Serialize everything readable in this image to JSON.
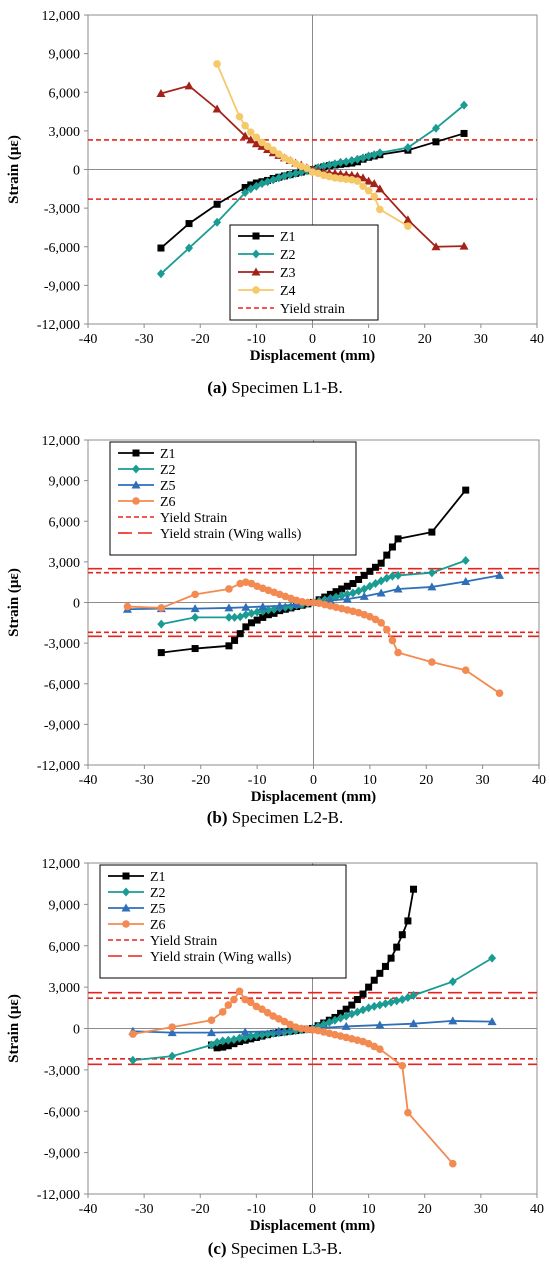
{
  "chart_data": [
    {
      "type": "line",
      "caption_letter": "(a)",
      "caption_text": " Specimen L1-B.",
      "xlabel": "Displacement (mm)",
      "ylabel": "Strain (με)",
      "xlim": [
        -40,
        40
      ],
      "ylim": [
        -12000,
        12000
      ],
      "xticks": [
        "-40",
        "-30",
        "-20",
        "-10",
        "0",
        "10",
        "20",
        "30",
        "40"
      ],
      "yticks": [
        "-12,000",
        "-9,000",
        "-6,000",
        "-3,000",
        "0",
        "3,000",
        "6,000",
        "9,000",
        "12,000"
      ],
      "legend_position": "bottom-center",
      "series": [
        {
          "name": "Z1",
          "color": "#000000",
          "marker": "square",
          "x": [
            -27,
            -22,
            -17,
            -12,
            -11,
            -10,
            -9,
            -8,
            -7,
            -6,
            -5,
            -4,
            -3,
            -2,
            -1,
            0,
            1,
            2,
            3,
            4,
            5,
            6,
            7,
            8,
            9,
            10,
            11,
            12,
            17,
            22,
            27
          ],
          "y": [
            -6100,
            -4200,
            -2700,
            -1400,
            -1200,
            -1050,
            -950,
            -850,
            -700,
            -600,
            -500,
            -400,
            -300,
            -200,
            -100,
            0,
            100,
            200,
            300,
            350,
            400,
            450,
            500,
            600,
            800,
            950,
            1050,
            1150,
            1500,
            2150,
            2800
          ]
        },
        {
          "name": "Z2",
          "color": "#1a9c93",
          "marker": "diamond",
          "x": [
            -27,
            -22,
            -17,
            -12,
            -11,
            -10,
            -9,
            -8,
            -7,
            -6,
            -5,
            -4,
            -3,
            -2,
            -1,
            0,
            1,
            2,
            3,
            4,
            5,
            6,
            7,
            8,
            9,
            10,
            11,
            12,
            17,
            22,
            27
          ],
          "y": [
            -8100,
            -6100,
            -4100,
            -1800,
            -1500,
            -1300,
            -1100,
            -950,
            -800,
            -650,
            -500,
            -400,
            -300,
            -200,
            -100,
            0,
            150,
            250,
            350,
            450,
            550,
            600,
            700,
            800,
            900,
            1050,
            1150,
            1300,
            1700,
            3200,
            5000
          ]
        },
        {
          "name": "Z3",
          "color": "#a3231b",
          "marker": "triangle",
          "x": [
            -27,
            -22,
            -17,
            -12,
            -11,
            -10,
            -9,
            -8,
            -7,
            -6,
            -5,
            -4,
            -3,
            -2,
            -1,
            0,
            1,
            2,
            3,
            4,
            5,
            6,
            7,
            8,
            9,
            10,
            11,
            12,
            17,
            22,
            27
          ],
          "y": [
            5900,
            6500,
            4700,
            2600,
            2300,
            2000,
            1800,
            1550,
            1300,
            1100,
            900,
            700,
            500,
            350,
            150,
            0,
            -100,
            -200,
            -250,
            -300,
            -350,
            -400,
            -450,
            -500,
            -650,
            -900,
            -1100,
            -1500,
            -3900,
            -6000,
            -5950
          ]
        },
        {
          "name": "Z4",
          "color": "#f5c96a",
          "marker": "circle",
          "x": [
            -17,
            -13,
            -12,
            -11,
            -10,
            -9,
            -8,
            -7,
            -6,
            -5,
            -4,
            -3,
            -2,
            -1,
            0,
            1,
            2,
            3,
            4,
            5,
            6,
            7,
            8,
            9,
            10,
            11,
            12,
            17
          ],
          "y": [
            8200,
            4100,
            3400,
            2900,
            2500,
            2100,
            1800,
            1500,
            1200,
            900,
            700,
            450,
            250,
            100,
            -200,
            -300,
            -450,
            -550,
            -650,
            -700,
            -750,
            -800,
            -900,
            -1300,
            -1650,
            -2100,
            -3100,
            -4400
          ]
        }
      ],
      "hlines": [
        {
          "name": "Yield strain",
          "color": "#e8231c",
          "style": "short-dash",
          "values": [
            2300,
            -2300
          ]
        }
      ]
    },
    {
      "type": "line",
      "caption_letter": "(b)",
      "caption_text": " Specimen L2-B.",
      "xlabel": "Displacement (mm)",
      "ylabel": "Strain (με)",
      "xlim": [
        -40,
        40
      ],
      "ylim": [
        -12000,
        12000
      ],
      "xticks": [
        "-40",
        "-30",
        "-20",
        "-10",
        "0",
        "10",
        "20",
        "30",
        "40"
      ],
      "yticks": [
        "-12,000",
        "-9,000",
        "-6,000",
        "-3,000",
        "0",
        "3,000",
        "6,000",
        "9,000",
        "12,000"
      ],
      "legend_position": "top-left",
      "series": [
        {
          "name": "Z1",
          "color": "#000000",
          "marker": "square",
          "x": [
            -27,
            -21,
            -15,
            -14,
            -13,
            -12,
            -11,
            -10,
            -9,
            -8,
            -7,
            -6,
            -5,
            -4,
            -3,
            -2,
            -1,
            0,
            1,
            2,
            3,
            4,
            5,
            6,
            7,
            8,
            9,
            10,
            11,
            12,
            13,
            14,
            15,
            21,
            27
          ],
          "y": [
            -3700,
            -3400,
            -3200,
            -2800,
            -2300,
            -1800,
            -1500,
            -1300,
            -1100,
            -900,
            -800,
            -600,
            -500,
            -400,
            -300,
            -200,
            -100,
            0,
            200,
            400,
            600,
            800,
            1000,
            1200,
            1400,
            1700,
            2000,
            2300,
            2600,
            2900,
            3500,
            4100,
            4700,
            5200,
            8300
          ]
        },
        {
          "name": "Z2",
          "color": "#1a9c93",
          "marker": "diamond",
          "x": [
            -27,
            -21,
            -15,
            -14,
            -13,
            -12,
            -11,
            -10,
            -9,
            -8,
            -7,
            -6,
            -5,
            -4,
            -3,
            -2,
            -1,
            0,
            1,
            2,
            3,
            4,
            5,
            6,
            7,
            8,
            9,
            10,
            11,
            12,
            13,
            14,
            15,
            21,
            27
          ],
          "y": [
            -1600,
            -1100,
            -1100,
            -1100,
            -1050,
            -900,
            -800,
            -700,
            -650,
            -550,
            -500,
            -400,
            -350,
            -300,
            -200,
            -150,
            -50,
            0,
            100,
            200,
            300,
            400,
            500,
            600,
            700,
            850,
            1000,
            1200,
            1400,
            1600,
            1800,
            1950,
            2000,
            2200,
            3100
          ]
        },
        {
          "name": "Z5",
          "color": "#2e6fb7",
          "marker": "triangle",
          "x": [
            -33,
            -27,
            -21,
            -15,
            -12,
            -9,
            -6,
            -3,
            0,
            3,
            6,
            9,
            12,
            15,
            21,
            27,
            33
          ],
          "y": [
            -500,
            -450,
            -450,
            -400,
            -350,
            -300,
            -250,
            -150,
            0,
            150,
            250,
            450,
            700,
            1000,
            1150,
            1550,
            2000
          ]
        },
        {
          "name": "Z6",
          "color": "#f38a52",
          "marker": "circle",
          "x": [
            -33,
            -27,
            -21,
            -15,
            -13,
            -12,
            -11,
            -10,
            -9,
            -8,
            -7,
            -6,
            -5,
            -4,
            -3,
            -2,
            -1,
            0,
            1,
            2,
            3,
            4,
            5,
            6,
            7,
            8,
            9,
            10,
            11,
            12,
            13,
            14,
            15,
            21,
            27,
            33
          ],
          "y": [
            -300,
            -400,
            600,
            1000,
            1400,
            1500,
            1400,
            1200,
            1050,
            900,
            750,
            600,
            450,
            300,
            150,
            50,
            0,
            0,
            -50,
            -150,
            -250,
            -350,
            -450,
            -550,
            -650,
            -750,
            -900,
            -1050,
            -1250,
            -1500,
            -2000,
            -2800,
            -3700,
            -4400,
            -5000,
            -6700
          ]
        }
      ],
      "hlines": [
        {
          "name": "Yield Strain",
          "color": "#e8231c",
          "style": "short-dash",
          "values": [
            2200,
            -2200
          ]
        },
        {
          "name": "Yield strain (Wing walls)",
          "color": "#e8231c",
          "style": "long-dash",
          "values": [
            2500,
            -2500
          ]
        }
      ]
    },
    {
      "type": "line",
      "caption_letter": "(c)",
      "caption_text": " Specimen L3-B.",
      "xlabel": "Displacement (mm)",
      "ylabel": "Strain (με)",
      "xlim": [
        -40,
        40
      ],
      "ylim": [
        -12000,
        12000
      ],
      "xticks": [
        "-40",
        "-30",
        "-20",
        "-10",
        "0",
        "10",
        "20",
        "30",
        "40"
      ],
      "yticks": [
        "-12,000",
        "-9,000",
        "-6,000",
        "-3,000",
        "0",
        "3,000",
        "6,000",
        "9,000",
        "12,000"
      ],
      "legend_position": "top-left",
      "series": [
        {
          "name": "Z1",
          "color": "#000000",
          "marker": "square",
          "x": [
            -18,
            -17,
            -16,
            -15,
            -14,
            -13,
            -12,
            -11,
            -10,
            -9,
            -8,
            -7,
            -6,
            -5,
            -4,
            -3,
            -2,
            -1,
            0,
            1,
            2,
            3,
            4,
            5,
            6,
            7,
            8,
            9,
            10,
            11,
            12,
            13,
            14,
            15,
            16,
            17,
            18
          ],
          "y": [
            -1200,
            -1400,
            -1350,
            -1250,
            -1100,
            -950,
            -850,
            -750,
            -650,
            -550,
            -450,
            -350,
            -300,
            -250,
            -200,
            -150,
            -100,
            -50,
            0,
            200,
            400,
            600,
            800,
            1100,
            1400,
            1700,
            2100,
            2500,
            3000,
            3500,
            4000,
            4500,
            5100,
            5900,
            6800,
            7800,
            10100
          ]
        },
        {
          "name": "Z2",
          "color": "#1a9c93",
          "marker": "diamond",
          "x": [
            -32,
            -25,
            -18,
            -17,
            -16,
            -15,
            -14,
            -13,
            -12,
            -11,
            -10,
            -9,
            -8,
            -7,
            -6,
            -5,
            -4,
            -3,
            -2,
            -1,
            0,
            1,
            2,
            3,
            4,
            5,
            6,
            7,
            8,
            9,
            10,
            11,
            12,
            13,
            14,
            15,
            16,
            17,
            18,
            25,
            32
          ],
          "y": [
            -2300,
            -2000,
            -1200,
            -1000,
            -900,
            -850,
            -800,
            -700,
            -650,
            -550,
            -500,
            -450,
            -400,
            -350,
            -300,
            -250,
            -200,
            -150,
            -100,
            -50,
            0,
            150,
            300,
            450,
            600,
            750,
            900,
            1050,
            1200,
            1350,
            1500,
            1600,
            1700,
            1800,
            1900,
            2000,
            2100,
            2250,
            2400,
            3400,
            5100
          ]
        },
        {
          "name": "Z5",
          "color": "#2e6fb7",
          "marker": "triangle",
          "x": [
            -32,
            -25,
            -18,
            -12,
            -6,
            0,
            6,
            12,
            18,
            25,
            32
          ],
          "y": [
            -200,
            -300,
            -300,
            -250,
            -200,
            0,
            150,
            250,
            350,
            550,
            500
          ]
        },
        {
          "name": "Z6",
          "color": "#f38a52",
          "marker": "circle",
          "x": [
            -32,
            -25,
            -18,
            -16,
            -15,
            -14,
            -13,
            -12,
            -11,
            -10,
            -9,
            -8,
            -7,
            -6,
            -5,
            -4,
            -3,
            -2,
            -1,
            0,
            1,
            2,
            3,
            4,
            5,
            6,
            7,
            8,
            9,
            10,
            11,
            12,
            16,
            17,
            25
          ],
          "y": [
            -400,
            100,
            600,
            1200,
            1700,
            2100,
            2700,
            2100,
            1900,
            1600,
            1400,
            1150,
            900,
            700,
            500,
            300,
            100,
            0,
            -50,
            -100,
            -150,
            -250,
            -350,
            -450,
            -550,
            -650,
            -750,
            -850,
            -950,
            -1100,
            -1300,
            -1500,
            -2700,
            -6100,
            -9800
          ]
        }
      ],
      "hlines": [
        {
          "name": "Yield Strain",
          "color": "#e8231c",
          "style": "short-dash",
          "values": [
            2200,
            -2200
          ]
        },
        {
          "name": "Yield strain (Wing walls)",
          "color": "#e8231c",
          "style": "long-dash",
          "values": [
            2600,
            -2600
          ]
        }
      ]
    }
  ]
}
